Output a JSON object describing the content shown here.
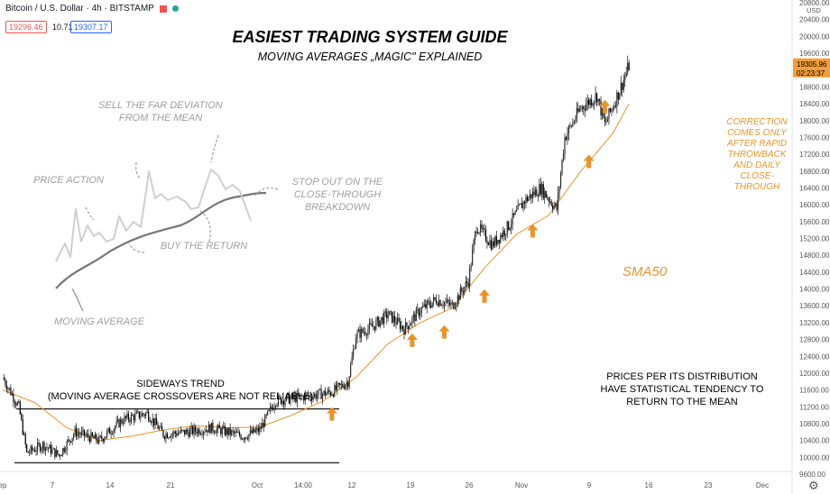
{
  "header": {
    "symbol": "Bitcoin / U.S. Dollar · 4h · BITSTAMP",
    "sell_price": "19296.46",
    "spread": "10.71",
    "buy_price": "19307.17",
    "currency": "USD"
  },
  "annotations": {
    "title": "EASIEST TRADING SYSTEM GUIDE",
    "subtitle": "MOVING AVERAGES „MAGIC\" EXPLAINED",
    "sell_far": "SELL THE FAR DEVIATION FROM THE MEAN",
    "price_action": "PRICE ACTION",
    "stop_out": "STOP OUT ON THE CLOSE-THROUGH BREAKDOWN",
    "buy_return": "BUY THE RETURN",
    "moving_average": "MOVING AVERAGE",
    "sideways": "SIDEWAYS TREND",
    "sideways_note": "(MOVING AVERAGE CROSSOVERS ARE NOT RELIABLE)",
    "sma_label": "SMA50",
    "correction": "CORRECTION COMES ONLY AFTER RAPID THROWBACK AND DAILY CLOSE-THROUGH",
    "prices_note": "PRICES PER ITS DISTRIBUTION HAVE STATISTICAL TENDENCY TO RETURN TO THE MEAN"
  },
  "colors": {
    "up": "#2b2b2b",
    "down": "#000000",
    "sma": "#e8942a",
    "annotation_gray": "#9e9e9e",
    "sideways_lines": "#1a1a1a",
    "last_price_bg": "#f29d38"
  },
  "chart_data": {
    "type": "candlestick",
    "title": "Bitcoin / U.S. Dollar · 4h · BITSTAMP",
    "x_tick_labels": [
      "ep",
      "7",
      "14",
      "21",
      "Oct",
      "14:00",
      "12",
      "19",
      "26",
      "Nov",
      "9",
      "16",
      "23",
      "Dec"
    ],
    "y_tick_labels": [
      9600,
      10000,
      10400,
      10800,
      11200,
      11600,
      12000,
      12400,
      12800,
      13200,
      13600,
      14000,
      14400,
      14800,
      15200,
      15600,
      16000,
      16400,
      16800,
      17200,
      17600,
      18000,
      18400,
      18800,
      19200,
      19600,
      20000,
      20400,
      20800
    ],
    "ylim": [
      9600,
      20800
    ],
    "last_price": "19305.96",
    "countdown": "02:23:37",
    "price_path": [
      {
        "day": 0,
        "price": 11900
      },
      {
        "day": 2,
        "price": 11200
      },
      {
        "day": 3,
        "price": 10100
      },
      {
        "day": 5,
        "price": 10300
      },
      {
        "day": 7,
        "price": 10050
      },
      {
        "day": 9,
        "price": 10600
      },
      {
        "day": 12,
        "price": 10400
      },
      {
        "day": 15,
        "price": 10900
      },
      {
        "day": 18,
        "price": 11050
      },
      {
        "day": 20,
        "price": 10550
      },
      {
        "day": 23,
        "price": 10600
      },
      {
        "day": 26,
        "price": 10700
      },
      {
        "day": 30,
        "price": 10500
      },
      {
        "day": 32,
        "price": 10650
      },
      {
        "day": 34,
        "price": 11350
      },
      {
        "day": 38,
        "price": 11450
      },
      {
        "day": 41,
        "price": 11550
      },
      {
        "day": 43,
        "price": 11800
      },
      {
        "day": 44,
        "price": 12900
      },
      {
        "day": 46,
        "price": 13100
      },
      {
        "day": 48,
        "price": 13400
      },
      {
        "day": 50,
        "price": 13050
      },
      {
        "day": 52,
        "price": 13500
      },
      {
        "day": 54,
        "price": 13750
      },
      {
        "day": 56,
        "price": 13600
      },
      {
        "day": 58,
        "price": 14200
      },
      {
        "day": 59,
        "price": 15500
      },
      {
        "day": 61,
        "price": 15050
      },
      {
        "day": 63,
        "price": 15500
      },
      {
        "day": 65,
        "price": 16100
      },
      {
        "day": 67,
        "price": 16400
      },
      {
        "day": 69,
        "price": 15900
      },
      {
        "day": 70,
        "price": 17600
      },
      {
        "day": 72,
        "price": 18300
      },
      {
        "day": 74,
        "price": 18600
      },
      {
        "day": 75,
        "price": 17900
      },
      {
        "day": 77,
        "price": 18800
      },
      {
        "day": 78,
        "price": 19305.96
      }
    ],
    "series": [
      {
        "name": "SMA50",
        "values": [
          {
            "day": 0,
            "price": 11600
          },
          {
            "day": 4,
            "price": 11300
          },
          {
            "day": 8,
            "price": 10700
          },
          {
            "day": 12,
            "price": 10400
          },
          {
            "day": 16,
            "price": 10500
          },
          {
            "day": 20,
            "price": 10650
          },
          {
            "day": 24,
            "price": 10750
          },
          {
            "day": 28,
            "price": 10700
          },
          {
            "day": 32,
            "price": 10720
          },
          {
            "day": 36,
            "price": 11000
          },
          {
            "day": 40,
            "price": 11350
          },
          {
            "day": 44,
            "price": 11900
          },
          {
            "day": 48,
            "price": 12700
          },
          {
            "day": 52,
            "price": 13200
          },
          {
            "day": 56,
            "price": 13550
          },
          {
            "day": 60,
            "price": 14500
          },
          {
            "day": 64,
            "price": 15300
          },
          {
            "day": 68,
            "price": 15750
          },
          {
            "day": 72,
            "price": 16800
          },
          {
            "day": 76,
            "price": 17700
          },
          {
            "day": 78,
            "price": 18400
          }
        ]
      }
    ],
    "sideways_band": {
      "upper": 11150,
      "lower": 9870
    },
    "buy_arrows": [
      {
        "day": 41,
        "price": 11000
      },
      {
        "day": 51,
        "price": 12750
      },
      {
        "day": 55,
        "price": 12950
      },
      {
        "day": 60,
        "price": 13800
      },
      {
        "day": 66,
        "price": 15350
      },
      {
        "day": 73,
        "price": 17000
      },
      {
        "day": 75,
        "price": 18300
      }
    ]
  }
}
